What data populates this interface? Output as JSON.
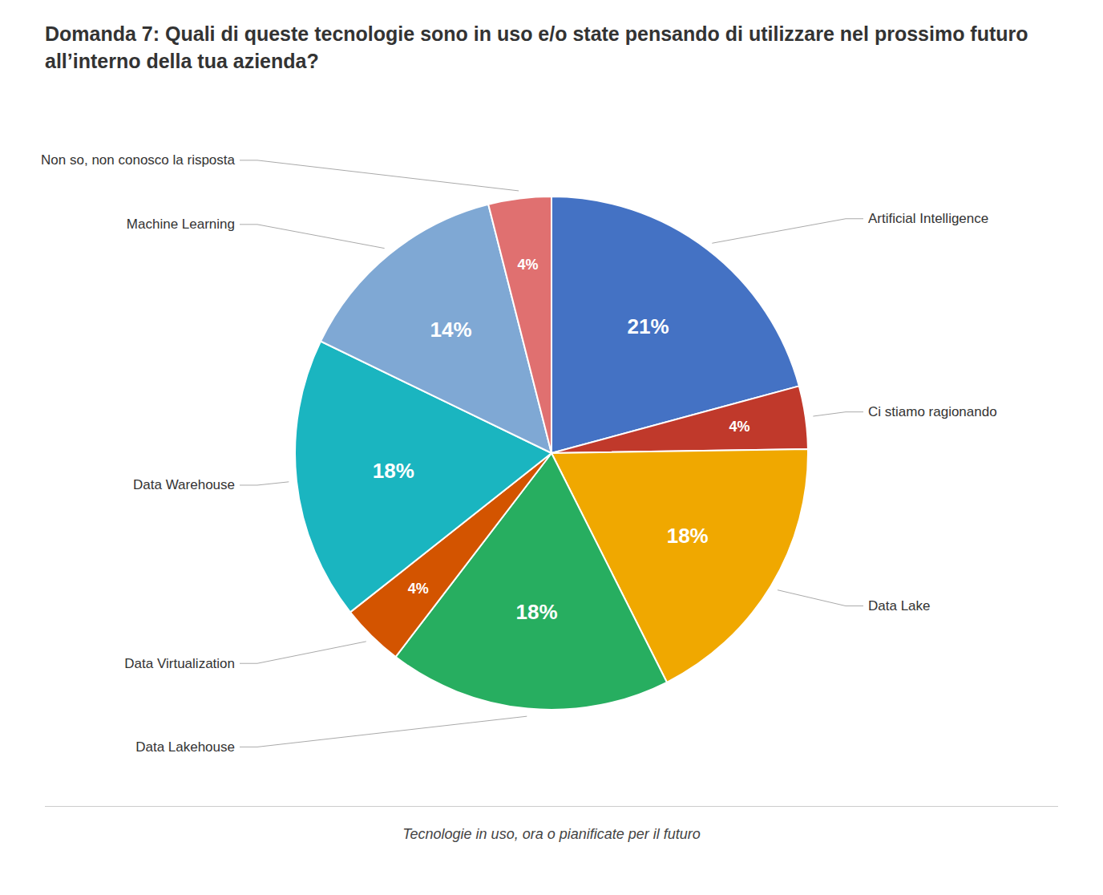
{
  "chart_data": {
    "type": "pie",
    "title": "Domanda 7: Quali di queste tecnologie sono in uso e/o state pensando di utilizzare nel prossimo futuro all’interno della tua azienda?",
    "subtitle": "Tecnologie in uso, ora o pianificate per il futuro",
    "categories": [
      "Artificial Intelligence",
      "Ci stiamo ragionando",
      "Data Lake",
      "Data Lakehouse",
      "Data Virtualization",
      "Data Warehouse",
      "Machine Learning",
      "Non so, non conosco la risposta"
    ],
    "values": [
      21,
      4,
      18,
      18,
      4,
      18,
      14,
      4
    ],
    "value_labels": [
      "21%",
      "4%",
      "18%",
      "18%",
      "4%",
      "18%",
      "14%",
      "4%"
    ],
    "colors": [
      "#4472c4",
      "#c0392b",
      "#f0a800",
      "#27ae60",
      "#d35400",
      "#1ab5c0",
      "#7fa8d4",
      "#e07070"
    ],
    "data_labels": true
  }
}
